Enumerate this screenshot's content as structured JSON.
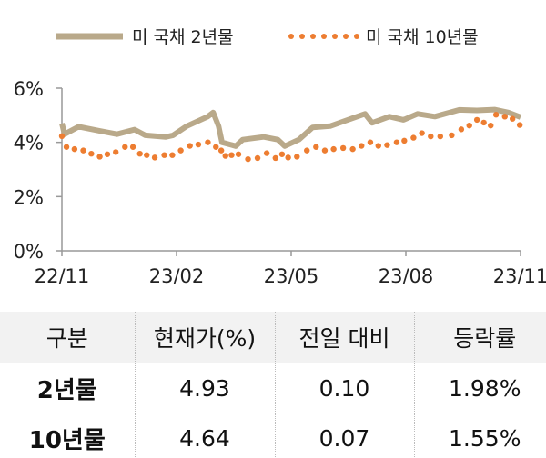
{
  "chart_data": {
    "type": "line",
    "title": "",
    "xlabel": "",
    "ylabel": "",
    "x_ticks": [
      "22/11",
      "23/02",
      "23/05",
      "23/08",
      "23/11"
    ],
    "x_tick_months": [
      0,
      3,
      6,
      9,
      12
    ],
    "xlim": [
      0,
      12
    ],
    "y_ticks": [
      "0%",
      "2%",
      "4%",
      "6%"
    ],
    "y_tick_values": [
      0,
      2,
      4,
      6
    ],
    "ylim": [
      0,
      6
    ],
    "legend_position": "top",
    "series": [
      {
        "name": "미 국채 2년물",
        "style": "line",
        "color": "#b9a98a",
        "x": [
          0,
          0.07,
          0.44,
          0.99,
          1.44,
          1.9,
          2.18,
          2.72,
          2.91,
          3.27,
          3.82,
          3.96,
          4.1,
          4.19,
          4.55,
          4.73,
          5.28,
          5.65,
          5.83,
          6.2,
          6.56,
          7.02,
          7.48,
          7.93,
          8.12,
          8.57,
          8.94,
          9.31,
          9.76,
          10.4,
          10.86,
          11.32,
          11.68,
          12
        ],
        "y": [
          4.7,
          4.3,
          4.58,
          4.42,
          4.3,
          4.47,
          4.26,
          4.2,
          4.26,
          4.6,
          4.95,
          5.1,
          4.6,
          4.0,
          3.86,
          4.1,
          4.2,
          4.1,
          3.86,
          4.1,
          4.55,
          4.6,
          4.83,
          5.05,
          4.72,
          4.95,
          4.83,
          5.05,
          4.95,
          5.2,
          5.18,
          5.21,
          5.1,
          4.93
        ]
      },
      {
        "name": "미 국채 10년물",
        "style": "dots",
        "color": "#ed7d31",
        "x": [
          0,
          0.12,
          0.33,
          0.56,
          0.77,
          0.99,
          1.19,
          1.41,
          1.65,
          1.86,
          2.04,
          2.22,
          2.43,
          2.68,
          2.89,
          3.11,
          3.35,
          3.57,
          3.82,
          4.03,
          4.17,
          4.28,
          4.44,
          4.62,
          4.87,
          5.12,
          5.36,
          5.59,
          5.76,
          5.92,
          6.15,
          6.41,
          6.65,
          6.88,
          7.11,
          7.36,
          7.61,
          7.84,
          8.07,
          8.28,
          8.51,
          8.76,
          8.96,
          9.2,
          9.42,
          9.65,
          9.9,
          10.2,
          10.45,
          10.66,
          10.86,
          11.04,
          11.22,
          11.36,
          11.59,
          11.79,
          11.98
        ],
        "y": [
          4.23,
          3.83,
          3.75,
          3.7,
          3.58,
          3.47,
          3.56,
          3.64,
          3.83,
          3.83,
          3.58,
          3.53,
          3.44,
          3.53,
          3.53,
          3.7,
          3.87,
          3.92,
          4.0,
          3.83,
          3.7,
          3.5,
          3.53,
          3.56,
          3.38,
          3.42,
          3.6,
          3.42,
          3.56,
          3.44,
          3.47,
          3.7,
          3.83,
          3.7,
          3.75,
          3.79,
          3.75,
          3.87,
          4.0,
          3.87,
          3.9,
          4.0,
          4.06,
          4.17,
          4.34,
          4.22,
          4.22,
          4.26,
          4.48,
          4.62,
          4.83,
          4.73,
          4.62,
          5.02,
          4.95,
          4.87,
          4.64
        ]
      }
    ]
  },
  "table": {
    "headers": [
      "구분",
      "현재가(%)",
      "전일 대비",
      "등락률"
    ],
    "rows": [
      [
        "2년물",
        "4.93",
        "0.10",
        "1.98%"
      ],
      [
        "10년물",
        "4.64",
        "0.07",
        "1.55%"
      ]
    ]
  }
}
